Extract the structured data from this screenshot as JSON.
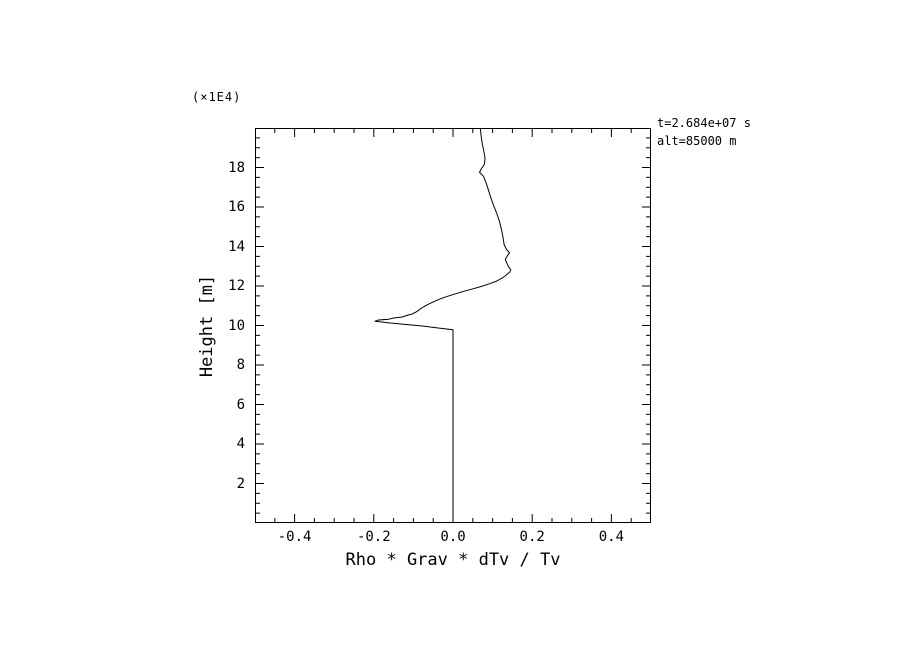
{
  "figure": {
    "background": "#ffffff",
    "line_color": "#000000",
    "annotation_line1": "t=2.684e+07 s",
    "annotation_line2": "alt=85000 m"
  },
  "chart_data": {
    "type": "line",
    "title": "",
    "xlabel": "Rho * Grav * dTv / Tv",
    "ylabel": "Height [m]",
    "y_units_multiplier": "(×1E4)",
    "xlim": [
      -0.5,
      0.5
    ],
    "ylim": [
      0,
      20
    ],
    "x_ticks": [
      -0.4,
      -0.2,
      0.0,
      0.2,
      0.4
    ],
    "x_tick_labels": [
      "-0.4",
      "-0.2",
      "0.0",
      "0.2",
      "0.4"
    ],
    "y_ticks": [
      2,
      4,
      6,
      8,
      10,
      12,
      14,
      16,
      18
    ],
    "y_tick_labels": [
      "2",
      "4",
      "6",
      "8",
      "10",
      "12",
      "14",
      "16",
      "18"
    ],
    "grid": false,
    "legend": "none",
    "annotations": [
      "t=2.684e+07 s",
      "alt=85000 m"
    ],
    "series": [
      {
        "name": "Rho * Grav * dTv / Tv profile",
        "points": [
          [
            0.0,
            0.15
          ],
          [
            0.0,
            9.78
          ],
          [
            -0.04,
            9.88
          ],
          [
            -0.08,
            9.98
          ],
          [
            -0.125,
            10.06
          ],
          [
            -0.165,
            10.14
          ],
          [
            -0.197,
            10.22
          ],
          [
            -0.188,
            10.28
          ],
          [
            -0.162,
            10.32
          ],
          [
            -0.15,
            10.38
          ],
          [
            -0.128,
            10.43
          ],
          [
            -0.118,
            10.5
          ],
          [
            -0.103,
            10.58
          ],
          [
            -0.092,
            10.7
          ],
          [
            -0.083,
            10.83
          ],
          [
            -0.073,
            10.96
          ],
          [
            -0.062,
            11.08
          ],
          [
            -0.049,
            11.2
          ],
          [
            -0.034,
            11.33
          ],
          [
            -0.017,
            11.46
          ],
          [
            0.002,
            11.58
          ],
          [
            0.024,
            11.71
          ],
          [
            0.047,
            11.84
          ],
          [
            0.07,
            11.97
          ],
          [
            0.092,
            12.11
          ],
          [
            0.11,
            12.25
          ],
          [
            0.124,
            12.4
          ],
          [
            0.134,
            12.55
          ],
          [
            0.143,
            12.7
          ],
          [
            0.146,
            12.82
          ],
          [
            0.141,
            12.95
          ],
          [
            0.136,
            13.15
          ],
          [
            0.132,
            13.35
          ],
          [
            0.138,
            13.55
          ],
          [
            0.143,
            13.68
          ],
          [
            0.135,
            13.85
          ],
          [
            0.129,
            14.1
          ],
          [
            0.126,
            14.5
          ],
          [
            0.122,
            14.9
          ],
          [
            0.117,
            15.3
          ],
          [
            0.11,
            15.7
          ],
          [
            0.102,
            16.1
          ],
          [
            0.095,
            16.5
          ],
          [
            0.089,
            16.9
          ],
          [
            0.083,
            17.25
          ],
          [
            0.077,
            17.55
          ],
          [
            0.067,
            17.75
          ],
          [
            0.072,
            17.95
          ],
          [
            0.079,
            18.15
          ],
          [
            0.081,
            18.45
          ],
          [
            0.078,
            18.8
          ],
          [
            0.074,
            19.2
          ],
          [
            0.071,
            19.6
          ],
          [
            0.069,
            19.97
          ]
        ]
      }
    ]
  }
}
